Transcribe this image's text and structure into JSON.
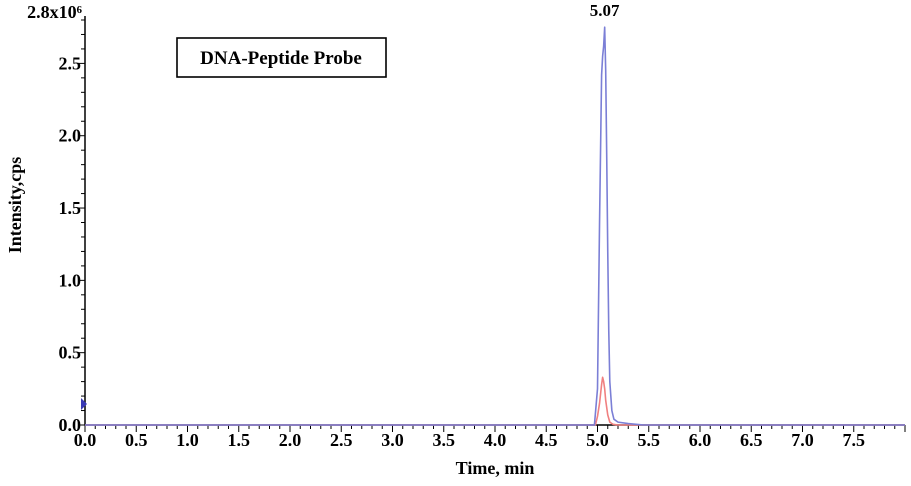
{
  "chart_data": {
    "type": "line",
    "title": "",
    "annotation_box": "DNA-Peptide Probe",
    "xlabel": "Time, min",
    "ylabel": "Intensity,cps",
    "xlim": [
      0.0,
      8.0
    ],
    "ylim": [
      0.0,
      2.8
    ],
    "y_axis_top_label": "2.8x10⁶",
    "x_ticks": [
      {
        "value": 0.0,
        "label": "0.0"
      },
      {
        "value": 0.5,
        "label": "0.5"
      },
      {
        "value": 1.0,
        "label": "1.0"
      },
      {
        "value": 1.5,
        "label": "1.5"
      },
      {
        "value": 2.0,
        "label": "2.0"
      },
      {
        "value": 2.5,
        "label": "2.5"
      },
      {
        "value": 3.0,
        "label": "3.0"
      },
      {
        "value": 3.5,
        "label": "3.5"
      },
      {
        "value": 4.0,
        "label": "4.0"
      },
      {
        "value": 4.5,
        "label": "4.5"
      },
      {
        "value": 5.0,
        "label": "5.0"
      },
      {
        "value": 5.5,
        "label": "5.5"
      },
      {
        "value": 6.0,
        "label": "6.0"
      },
      {
        "value": 6.5,
        "label": "6.5"
      },
      {
        "value": 7.0,
        "label": "7.0"
      },
      {
        "value": 7.5,
        "label": "7.5"
      }
    ],
    "y_ticks": [
      {
        "value": 0.0,
        "label": "0.0"
      },
      {
        "value": 0.5,
        "label": "0.5"
      },
      {
        "value": 1.0,
        "label": "1.0"
      },
      {
        "value": 1.5,
        "label": "1.5"
      },
      {
        "value": 2.0,
        "label": "2.0"
      },
      {
        "value": 2.5,
        "label": "2.5"
      }
    ],
    "peak_label": {
      "x": 5.07,
      "text": "5.07"
    },
    "grid": false,
    "series": [
      {
        "color": "#7b7fd6",
        "x": [
          0.0,
          4.97,
          5.0,
          5.02,
          5.04,
          5.05,
          5.06,
          5.07,
          5.08,
          5.09,
          5.1,
          5.11,
          5.12,
          5.14,
          5.16,
          5.2,
          5.3,
          5.45,
          8.0
        ],
        "y": [
          0.0,
          0.0,
          0.25,
          1.4,
          2.42,
          2.55,
          2.62,
          2.75,
          2.45,
          1.85,
          1.2,
          0.65,
          0.3,
          0.1,
          0.04,
          0.02,
          0.01,
          0.0,
          0.0
        ]
      },
      {
        "color": "#f08080",
        "x": [
          0.0,
          4.98,
          5.0,
          5.02,
          5.04,
          5.05,
          5.06,
          5.07,
          5.08,
          5.1,
          5.12,
          5.15,
          5.2,
          8.0
        ],
        "y": [
          0.0,
          0.0,
          0.06,
          0.15,
          0.28,
          0.33,
          0.3,
          0.25,
          0.17,
          0.07,
          0.02,
          0.005,
          0.0,
          0.0
        ]
      }
    ]
  },
  "icons": {
    "y_axis_marker": "triangle-right-marker-icon"
  }
}
